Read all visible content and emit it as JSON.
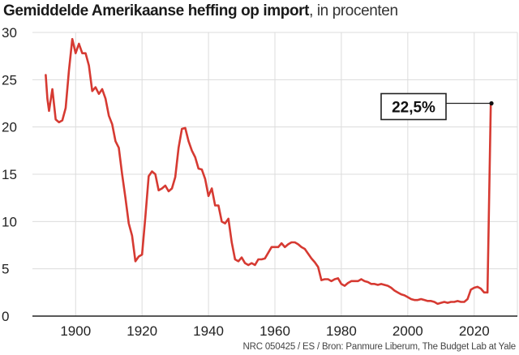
{
  "header": {
    "title_bold": "Gemiddelde Amerikaanse heffing op import",
    "title_suffix": ", in procenten"
  },
  "source": "NRC 050425 / ES / Bron: Panmure Liberum, The Budget Lab at Yale",
  "colors": {
    "line": "#d63a32",
    "grid": "#dcdcdc",
    "axis": "#222222",
    "text": "#222222"
  },
  "chart_data": {
    "type": "line",
    "title": "Gemiddelde Amerikaanse heffing op import, in procenten",
    "xlim": [
      1887,
      2033
    ],
    "ylim": [
      0,
      30
    ],
    "x_ticks": [
      1900,
      1920,
      1940,
      1960,
      1980,
      2000,
      2020
    ],
    "y_ticks": [
      0,
      5,
      10,
      15,
      20,
      25,
      30
    ],
    "grid": true,
    "series": [
      {
        "x": [
          1891,
          1891.5,
          1892,
          1893,
          1894,
          1895,
          1896,
          1897,
          1898,
          1899,
          1900,
          1901,
          1902,
          1903,
          1904,
          1905,
          1906,
          1907,
          1908,
          1909,
          1910,
          1911,
          1912,
          1913,
          1914,
          1915,
          1916,
          1917,
          1918,
          1919,
          1920,
          1921,
          1922,
          1923,
          1924,
          1925,
          1926,
          1927,
          1928,
          1929,
          1930,
          1931,
          1932,
          1933,
          1934,
          1935,
          1936,
          1937,
          1938,
          1939,
          1940,
          1941,
          1942,
          1943,
          1944,
          1945,
          1946,
          1947,
          1948,
          1949,
          1950,
          1951,
          1952,
          1953,
          1954,
          1955,
          1956,
          1957,
          1958,
          1959,
          1960,
          1961,
          1962,
          1963,
          1964,
          1965,
          1966,
          1967,
          1968,
          1969,
          1970,
          1971,
          1972,
          1973,
          1974,
          1975,
          1976,
          1977,
          1978,
          1979,
          1980,
          1981,
          1982,
          1983,
          1984,
          1985,
          1986,
          1987,
          1988,
          1989,
          1990,
          1991,
          1992,
          1993,
          1994,
          1995,
          1996,
          1997,
          1998,
          1999,
          2000,
          2001,
          2002,
          2003,
          2004,
          2005,
          2006,
          2007,
          2008,
          2009,
          2010,
          2011,
          2012,
          2013,
          2014,
          2015,
          2016,
          2017,
          2018,
          2019,
          2020,
          2021,
          2022,
          2023,
          2024,
          2025,
          2025.2
        ],
        "values": [
          25.5,
          23.0,
          21.7,
          24.0,
          20.8,
          20.5,
          20.7,
          22.0,
          26.0,
          29.3,
          27.8,
          28.8,
          27.8,
          27.8,
          26.5,
          23.8,
          24.2,
          23.5,
          24.0,
          23.0,
          21.2,
          20.3,
          18.5,
          17.8,
          15.0,
          12.5,
          9.8,
          8.5,
          5.8,
          6.3,
          6.5,
          10.5,
          14.8,
          15.3,
          15.0,
          13.3,
          13.5,
          13.8,
          13.2,
          13.5,
          14.7,
          17.8,
          19.8,
          19.9,
          18.5,
          17.5,
          16.8,
          15.6,
          15.5,
          14.5,
          12.7,
          13.5,
          11.7,
          11.7,
          10.0,
          9.8,
          10.3,
          7.8,
          6.0,
          5.8,
          6.2,
          5.6,
          5.4,
          5.6,
          5.4,
          6.0,
          6.0,
          6.1,
          6.7,
          7.3,
          7.3,
          7.3,
          7.7,
          7.3,
          7.6,
          7.8,
          7.8,
          7.6,
          7.3,
          7.1,
          6.6,
          6.1,
          5.7,
          5.2,
          3.8,
          3.9,
          3.9,
          3.7,
          3.9,
          4.0,
          3.4,
          3.2,
          3.5,
          3.7,
          3.7,
          3.7,
          3.9,
          3.7,
          3.6,
          3.4,
          3.4,
          3.3,
          3.4,
          3.3,
          3.2,
          3.0,
          2.7,
          2.5,
          2.3,
          2.2,
          2.0,
          1.8,
          1.7,
          1.7,
          1.8,
          1.7,
          1.6,
          1.6,
          1.5,
          1.3,
          1.4,
          1.5,
          1.4,
          1.5,
          1.5,
          1.6,
          1.5,
          1.5,
          1.8,
          2.8,
          3.0,
          3.1,
          2.9,
          2.5,
          2.5,
          22.5,
          22.5
        ]
      }
    ],
    "annotation": {
      "label": "22,5%",
      "x": 2025.2,
      "y": 22.5
    }
  }
}
